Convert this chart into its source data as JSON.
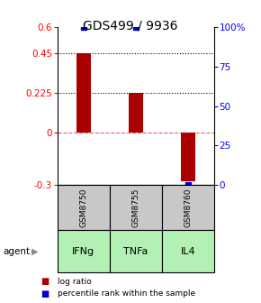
{
  "title": "GDS499 / 9936",
  "categories": [
    "IFNg",
    "TNFa",
    "IL4"
  ],
  "gsm_labels": [
    "GSM8750",
    "GSM8755",
    "GSM8760"
  ],
  "log_ratios": [
    0.45,
    0.225,
    -0.28
  ],
  "percentile_ranks": [
    100.0,
    100.0,
    0.0
  ],
  "bar_color": "#aa0000",
  "dot_color": "#0000cc",
  "left_yticks": [
    -0.3,
    0,
    0.225,
    0.45,
    0.6
  ],
  "left_ytick_labels": [
    "-0.3",
    "0",
    "0.225",
    "0.45",
    "0.6"
  ],
  "right_yticks": [
    0,
    25,
    50,
    75,
    100
  ],
  "right_ytick_labels": [
    "0",
    "25",
    "50",
    "75",
    "100%"
  ],
  "ylim_left": [
    -0.3,
    0.6
  ],
  "ylim_right": [
    0,
    100
  ],
  "green_light": "#b3f0b3",
  "green_medium": "#66cc66",
  "gsm_bg_color": "#c8c8c8",
  "hline_y": [
    0.225,
    0.45
  ],
  "legend_log_ratio": "log ratio",
  "legend_percentile": "percentile rank within the sample",
  "title_fontsize": 10,
  "axis_fontsize": 7.5,
  "bar_width": 0.28
}
